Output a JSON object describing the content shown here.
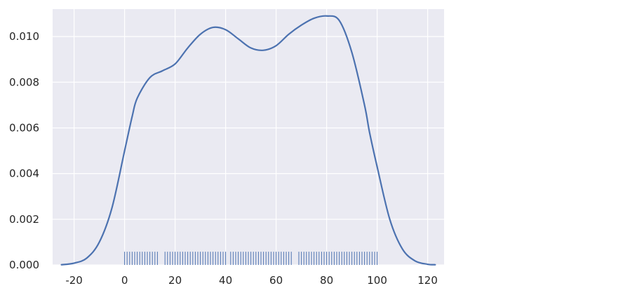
{
  "chart_data": {
    "type": "line",
    "title": "",
    "xlabel": "",
    "ylabel": "",
    "xlim": [
      -28.5,
      126.5
    ],
    "ylim": [
      0,
      0.0112
    ],
    "x_ticks": [
      -20,
      0,
      20,
      40,
      60,
      80,
      100,
      120
    ],
    "x_tick_labels": [
      "-20",
      "0",
      "20",
      "40",
      "60",
      "80",
      "100",
      "120"
    ],
    "y_ticks": [
      0,
      0.002,
      0.004,
      0.006,
      0.008,
      0.01
    ],
    "y_tick_labels": [
      "0.000",
      "0.002",
      "0.004",
      "0.006",
      "0.008",
      "0.010"
    ],
    "grid": true,
    "style": {
      "background": "#eaeaf2",
      "grid_color": "#ffffff",
      "line_color": "#4c72b0",
      "rug_color": "#4c72b0"
    },
    "series": [
      {
        "kind": "kde",
        "x": [
          -25,
          -20,
          -15,
          -10,
          -5,
          0,
          3,
          5,
          10,
          15,
          20,
          25,
          30,
          35,
          40,
          45,
          50,
          55,
          60,
          65,
          70,
          75,
          80,
          85,
          90,
          95,
          97,
          100,
          105,
          110,
          115,
          120,
          123
        ],
        "y": [
          1e-05,
          8e-05,
          0.0003,
          0.001,
          0.0025,
          0.005,
          0.0065,
          0.0073,
          0.0082,
          0.0085,
          0.0088,
          0.0095,
          0.0101,
          0.0104,
          0.0103,
          0.0099,
          0.0095,
          0.0094,
          0.0096,
          0.0101,
          0.0105,
          0.0108,
          0.0109,
          0.0107,
          0.0093,
          0.007,
          0.0058,
          0.0043,
          0.002,
          0.0007,
          0.00018,
          3e-05,
          1e-05
        ]
      }
    ],
    "rug": {
      "start": 0,
      "end": 100,
      "count": 101,
      "height": 0.00058,
      "missing": [
        14,
        15,
        41,
        67,
        68
      ]
    }
  }
}
